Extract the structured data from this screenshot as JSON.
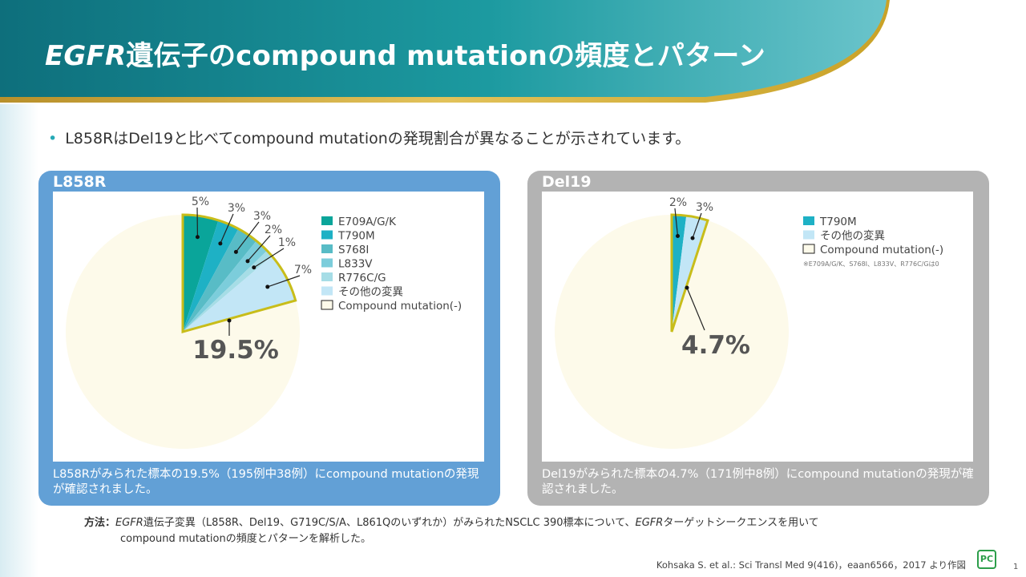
{
  "title": {
    "italic": "EGFR",
    "rest": "遺伝子のcompound mutationの頻度とパターン"
  },
  "bullet": "L858RはDel19と比べてcompound  mutationの発現割合が異なることが示されています。",
  "colors": {
    "header_teal": "#1b8a93",
    "gold": "#c9a227",
    "l858r_panel": "#62a0d6",
    "del19_panel": "#b3b3b3",
    "compound_neg": "#fdfaea",
    "highlight_border": "#c8bd1a"
  },
  "l858r": {
    "panel_title": "L858R",
    "center_value": "19.5%",
    "legend": [
      {
        "label": "E709A/G/K",
        "color": "#0aa59a"
      },
      {
        "label": "T790M",
        "color": "#1eb1c5"
      },
      {
        "label": "S768I",
        "color": "#58bcc6"
      },
      {
        "label": "L833V",
        "color": "#7ccddb"
      },
      {
        "label": "R776C/G",
        "color": "#a6dde6"
      },
      {
        "label": "その他の変異",
        "color": "#c2e6f6"
      },
      {
        "label": "Compound mutation(-)",
        "color": "#fdfaea"
      }
    ],
    "slice_labels": [
      "5%",
      "3%",
      "3%",
      "2%",
      "1%",
      "7%"
    ],
    "caption": "L858Rがみられた標本の19.5%（195例中38例）にcompound  mutationの発現が確認されました。"
  },
  "del19": {
    "panel_title": "Del19",
    "center_value": "4.7%",
    "legend": [
      {
        "label": "T790M",
        "color": "#1eb1c5"
      },
      {
        "label": "その他の変異",
        "color": "#c2e6f6"
      },
      {
        "label": "Compound mutation(-)",
        "color": "#fdfaea"
      }
    ],
    "slice_labels": [
      "2%",
      "3%"
    ],
    "note": "※E709A/G/K、S768I、L833V、R776C/Gは0",
    "caption": "Del19がみられた標本の4.7%（171例中8例）にcompound  mutationの発現が確認されました。"
  },
  "chart_data": [
    {
      "type": "pie",
      "title": "L858R",
      "categories": [
        "E709A/G/K",
        "T790M",
        "S768I",
        "L833V",
        "R776C/G",
        "その他の変異",
        "Compound mutation(-)"
      ],
      "values": [
        5,
        3,
        3,
        2,
        1,
        7,
        80.5
      ],
      "highlight_total": "19.5%"
    },
    {
      "type": "pie",
      "title": "Del19",
      "categories": [
        "T790M",
        "その他の変異",
        "Compound mutation(-)"
      ],
      "values": [
        2,
        3,
        95.3
      ],
      "highlight_total": "4.7%"
    }
  ],
  "method": {
    "label": "方法：",
    "italic1": "EGFR",
    "text1": "遺伝子変異（L858R、Del19、G719C/S/A、L861Qのいずれか）がみられたNSCLC 390標本について、",
    "italic2": "EGFR",
    "text2": "ターゲットシークエンスを用いて",
    "line2": "compound mutationの頻度とパターンを解析した。"
  },
  "reference": "Kohsaka S. et al.: Sci Transl Med 9(416)，eaan6566，2017 より作図",
  "logo": "PC",
  "page_number": "1"
}
